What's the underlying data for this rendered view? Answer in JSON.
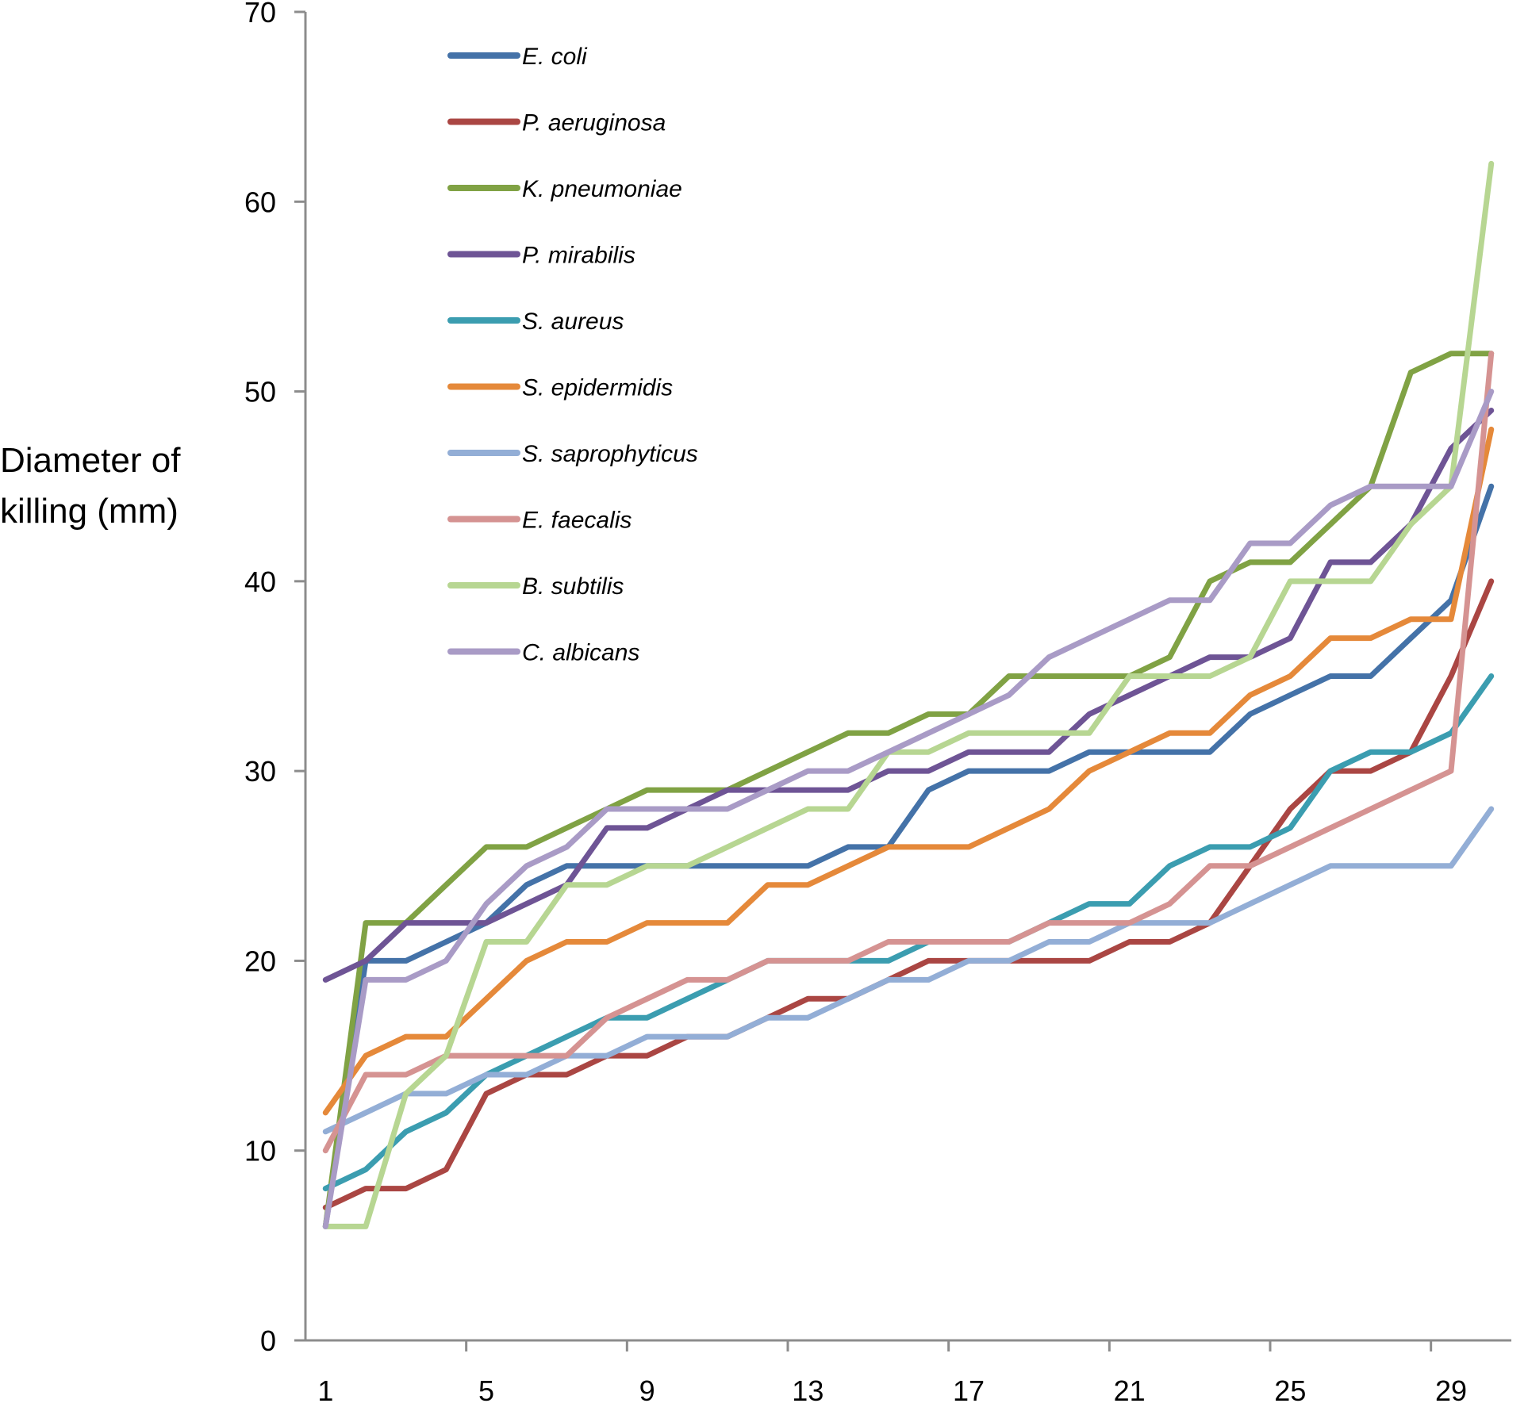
{
  "chart_data": {
    "type": "line",
    "title": "",
    "xlabel": "",
    "ylabel_lines": [
      "Diameter of",
      "killing (mm)"
    ],
    "x": [
      1,
      2,
      3,
      4,
      5,
      6,
      7,
      8,
      9,
      10,
      11,
      12,
      13,
      14,
      15,
      16,
      17,
      18,
      19,
      20,
      21,
      22,
      23,
      24,
      25,
      26,
      27,
      28,
      29,
      30
    ],
    "xticks": [
      1,
      5,
      9,
      13,
      17,
      21,
      25,
      29
    ],
    "xlim": [
      0.5,
      30.5
    ],
    "yticks": [
      0,
      10,
      20,
      30,
      40,
      50,
      60,
      70
    ],
    "ylim": [
      0,
      70
    ],
    "grid": false,
    "legend_position": "top-left",
    "series": [
      {
        "name": "E. coli",
        "color": "#4472A8",
        "values": [
          6,
          20,
          20,
          21,
          22,
          24,
          25,
          25,
          25,
          25,
          25,
          25,
          25,
          26,
          26,
          29,
          30,
          30,
          30,
          31,
          31,
          31,
          31,
          33,
          34,
          35,
          35,
          37,
          39,
          45
        ]
      },
      {
        "name": "P. aeruginosa",
        "color": "#AA4643",
        "values": [
          7,
          8,
          8,
          9,
          13,
          14,
          14,
          15,
          15,
          16,
          16,
          17,
          18,
          18,
          19,
          20,
          20,
          20,
          20,
          20,
          21,
          21,
          22,
          25,
          28,
          30,
          30,
          31,
          35,
          40
        ]
      },
      {
        "name": "K. pneumoniae",
        "color": "#80A244",
        "values": [
          6,
          22,
          22,
          24,
          26,
          26,
          27,
          28,
          29,
          29,
          29,
          30,
          31,
          32,
          32,
          33,
          33,
          35,
          35,
          35,
          35,
          36,
          40,
          41,
          41,
          43,
          45,
          51,
          52,
          52
        ]
      },
      {
        "name": "P. mirabilis",
        "color": "#6E5495",
        "values": [
          19,
          20,
          22,
          22,
          22,
          23,
          24,
          27,
          27,
          28,
          29,
          29,
          29,
          29,
          30,
          30,
          31,
          31,
          31,
          33,
          34,
          35,
          36,
          36,
          37,
          41,
          41,
          43,
          47,
          49
        ]
      },
      {
        "name": "S. aureus",
        "color": "#3B9DB0",
        "values": [
          8,
          9,
          11,
          12,
          14,
          15,
          16,
          17,
          17,
          18,
          19,
          20,
          20,
          20,
          20,
          21,
          21,
          21,
          22,
          23,
          23,
          25,
          26,
          26,
          27,
          30,
          31,
          31,
          32,
          35
        ]
      },
      {
        "name": "S. epidermidis",
        "color": "#E5893A",
        "values": [
          12,
          15,
          16,
          16,
          18,
          20,
          21,
          21,
          22,
          22,
          22,
          24,
          24,
          25,
          26,
          26,
          26,
          27,
          28,
          30,
          31,
          32,
          32,
          34,
          35,
          37,
          37,
          38,
          38,
          48
        ]
      },
      {
        "name": "S. saprophyticus",
        "color": "#93AED6",
        "values": [
          11,
          12,
          13,
          13,
          14,
          14,
          15,
          15,
          16,
          16,
          16,
          17,
          17,
          18,
          19,
          19,
          20,
          20,
          21,
          21,
          22,
          22,
          22,
          23,
          24,
          25,
          25,
          25,
          25,
          28
        ]
      },
      {
        "name": "E. faecalis",
        "color": "#D59392",
        "values": [
          10,
          14,
          14,
          15,
          15,
          15,
          15,
          17,
          18,
          19,
          19,
          20,
          20,
          20,
          21,
          21,
          21,
          21,
          22,
          22,
          22,
          23,
          25,
          25,
          26,
          27,
          28,
          29,
          30,
          52
        ]
      },
      {
        "name": "B. subtilis",
        "color": "#B7D692",
        "values": [
          6,
          6,
          13,
          15,
          21,
          21,
          24,
          24,
          25,
          25,
          26,
          27,
          28,
          28,
          31,
          31,
          32,
          32,
          32,
          32,
          35,
          35,
          35,
          36,
          40,
          40,
          40,
          43,
          45,
          62
        ]
      },
      {
        "name": "C. albicans",
        "color": "#A99BC6",
        "values": [
          6,
          19,
          19,
          20,
          23,
          25,
          26,
          28,
          28,
          28,
          28,
          29,
          30,
          30,
          31,
          32,
          33,
          34,
          36,
          37,
          38,
          39,
          39,
          42,
          42,
          44,
          45,
          45,
          45,
          50
        ]
      }
    ]
  }
}
